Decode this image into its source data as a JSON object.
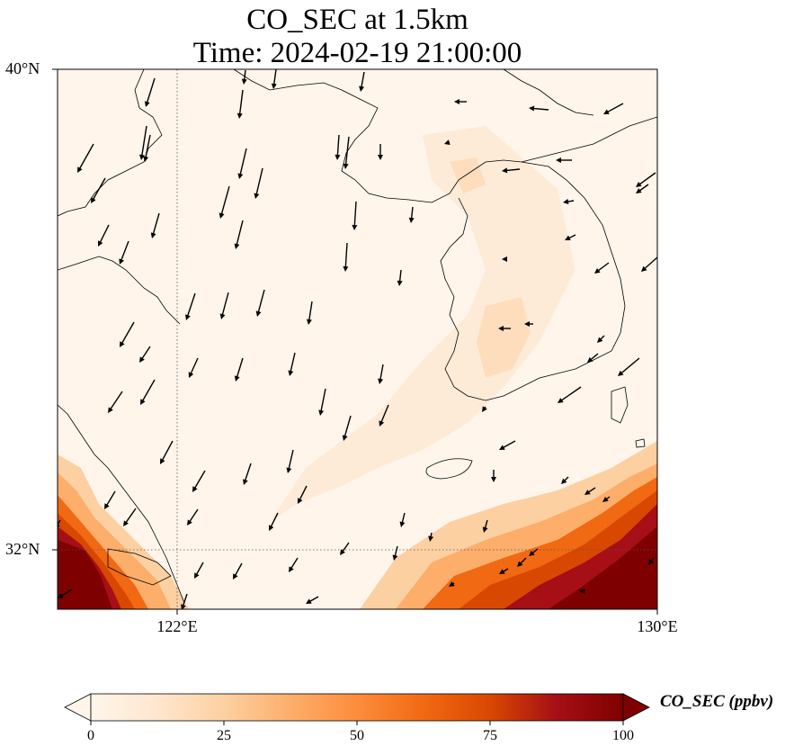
{
  "title": {
    "line1": "CO_SEC at 1.5km",
    "line2": "Time: 2024-02-19 21:00:00"
  },
  "map": {
    "lat_range": [
      31.5,
      40
    ],
    "lon_range": [
      121,
      130
    ],
    "lat_ticks": [
      {
        "value": 40,
        "label": "40°N"
      },
      {
        "value": 32,
        "label": "32°N"
      }
    ],
    "lon_ticks": [
      {
        "value": 122,
        "label": "122°E"
      },
      {
        "value": 130,
        "label": "130°E"
      }
    ],
    "gridlines": {
      "lat": [
        32
      ],
      "lon": [
        122
      ],
      "style": "dotted"
    },
    "field_colors": {
      "background": "#fff5eb",
      "low": "#feebd3",
      "medium": "#fdd0a2",
      "high": "#f16913",
      "very_high": "#a50f15",
      "max": "#7f0000"
    }
  },
  "colorbar": {
    "label": "CO_SEC (ppbv)",
    "min": 0,
    "max": 100,
    "ticks": [
      "0",
      "25",
      "50",
      "75",
      "100"
    ],
    "extend": "both",
    "colormap": [
      "#fff5eb",
      "#fee6ce",
      "#fdd0a2",
      "#fdae6b",
      "#fd8d3c",
      "#f16913",
      "#d94801",
      "#a50f15",
      "#7f0000"
    ]
  }
}
